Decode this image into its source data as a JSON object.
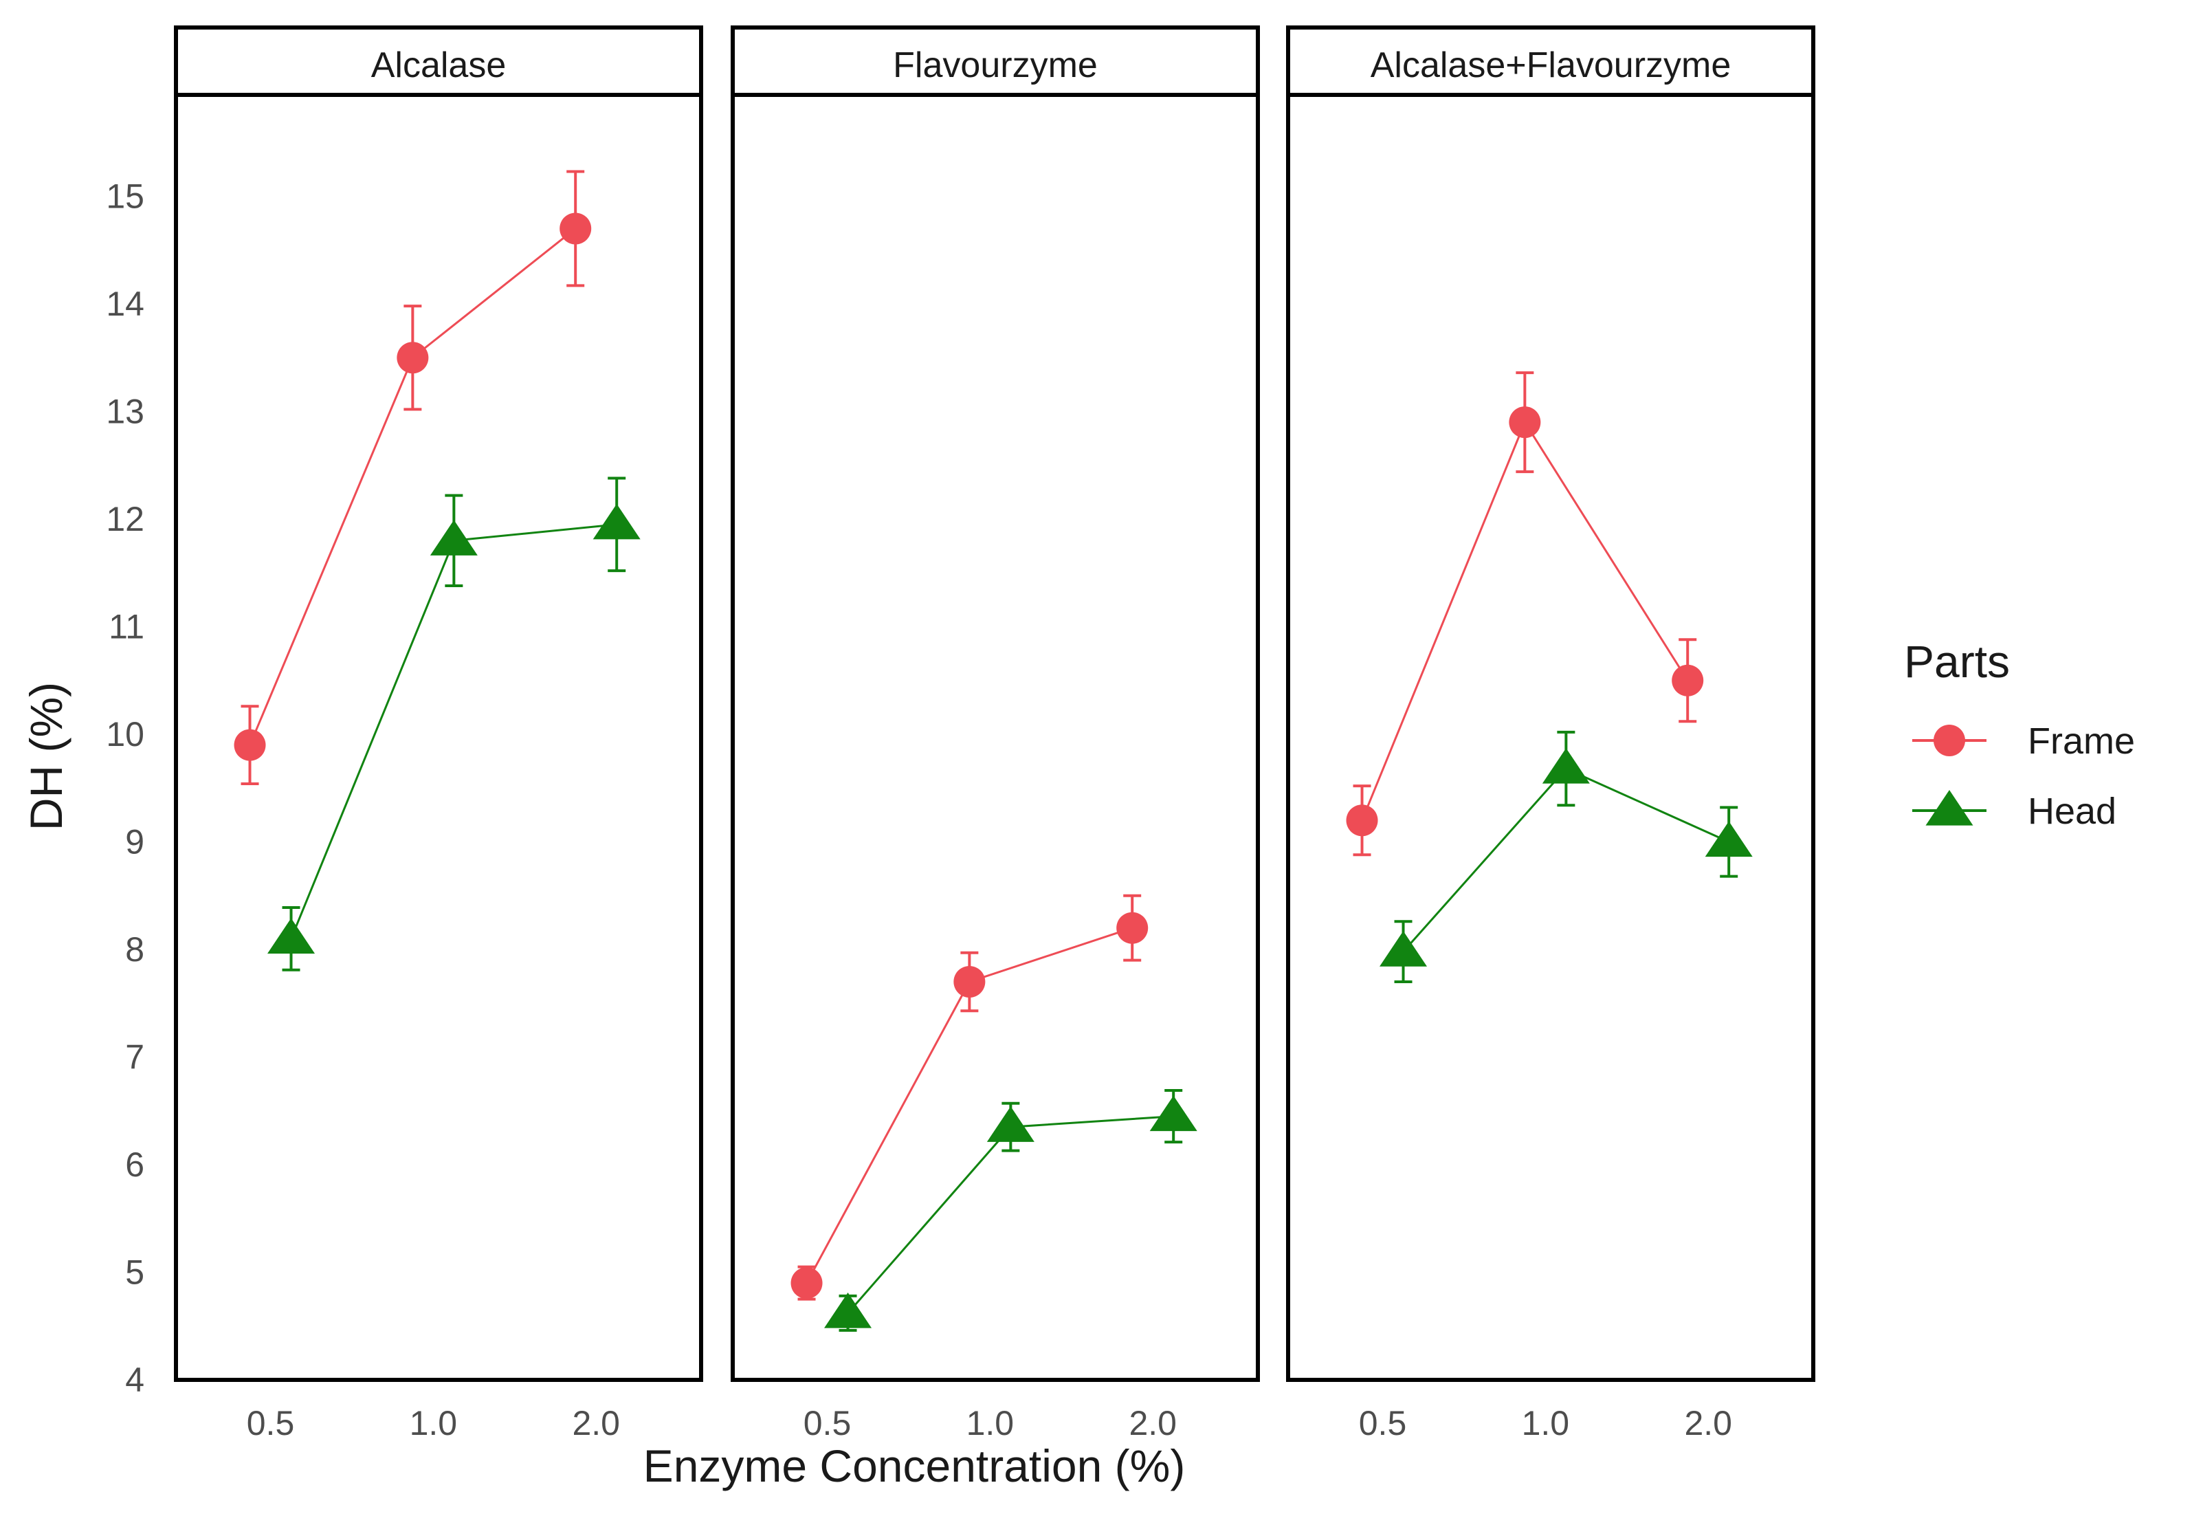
{
  "chart_data": {
    "type": "line",
    "xlabel": "Enzyme Concentration (%)",
    "ylabel": "DH (%)",
    "ylim": [
      4,
      15.5
    ],
    "yticks": [
      4,
      5,
      6,
      7,
      8,
      9,
      10,
      11,
      12,
      13,
      14,
      15
    ],
    "categories": [
      "0.5",
      "1.0",
      "2.0"
    ],
    "legend": {
      "title": "Parts",
      "position": "right",
      "items": [
        {
          "name": "Frame",
          "color": "#ee4c55",
          "marker": "circle"
        },
        {
          "name": "Head",
          "color": "#118411",
          "marker": "triangle"
        }
      ]
    },
    "panels": [
      {
        "title": "Alcalase",
        "series": [
          {
            "name": "Frame",
            "values": [
              9.9,
              13.5,
              14.7
            ],
            "errors": [
              0.36,
              0.48,
              0.53
            ]
          },
          {
            "name": "Head",
            "values": [
              8.1,
              11.8,
              11.95
            ],
            "errors": [
              0.29,
              0.42,
              0.43
            ]
          }
        ]
      },
      {
        "title": "Flavourzyme",
        "series": [
          {
            "name": "Frame",
            "values": [
              4.9,
              7.7,
              8.2
            ],
            "errors": [
              0.15,
              0.27,
              0.3
            ]
          },
          {
            "name": "Head",
            "values": [
              4.62,
              6.35,
              6.45
            ],
            "errors": [
              0.16,
              0.22,
              0.24
            ]
          }
        ]
      },
      {
        "title": "Alcalase+Flavourzyme",
        "series": [
          {
            "name": "Frame",
            "values": [
              9.2,
              12.9,
              10.5
            ],
            "errors": [
              0.32,
              0.46,
              0.38
            ]
          },
          {
            "name": "Head",
            "values": [
              7.98,
              9.68,
              9.0
            ],
            "errors": [
              0.28,
              0.34,
              0.32
            ]
          }
        ]
      }
    ]
  }
}
